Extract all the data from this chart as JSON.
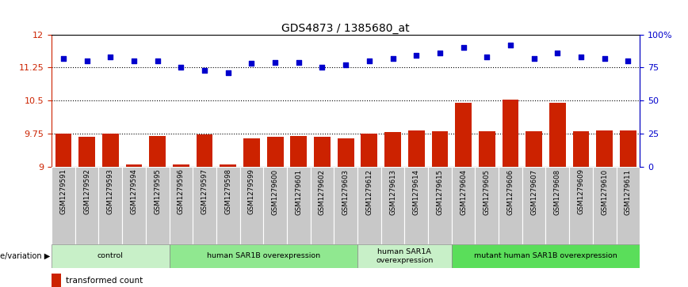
{
  "title": "GDS4873 / 1385680_at",
  "samples": [
    "GSM1279591",
    "GSM1279592",
    "GSM1279593",
    "GSM1279594",
    "GSM1279595",
    "GSM1279596",
    "GSM1279597",
    "GSM1279598",
    "GSM1279599",
    "GSM1279600",
    "GSM1279601",
    "GSM1279602",
    "GSM1279603",
    "GSM1279612",
    "GSM1279613",
    "GSM1279614",
    "GSM1279615",
    "GSM1279604",
    "GSM1279605",
    "GSM1279606",
    "GSM1279607",
    "GSM1279608",
    "GSM1279609",
    "GSM1279610",
    "GSM1279611"
  ],
  "transformed_count": [
    9.75,
    9.68,
    9.75,
    9.04,
    9.7,
    9.04,
    9.72,
    9.04,
    9.63,
    9.68,
    9.7,
    9.68,
    9.63,
    9.75,
    9.78,
    9.82,
    9.8,
    10.45,
    9.8,
    10.52,
    9.8,
    10.45,
    9.8,
    9.82,
    9.82
  ],
  "percentile_rank": [
    82,
    80,
    83,
    80,
    80,
    75,
    73,
    71,
    78,
    79,
    79,
    75,
    77,
    80,
    82,
    84,
    86,
    90,
    83,
    92,
    82,
    86,
    83,
    82,
    80
  ],
  "ylim_left": [
    9.0,
    12.0
  ],
  "ylim_right": [
    0,
    100
  ],
  "yticks_left": [
    9.0,
    9.75,
    10.5,
    11.25,
    12.0
  ],
  "yticks_right": [
    0,
    25,
    50,
    75,
    100
  ],
  "hlines": [
    9.75,
    10.5,
    11.25
  ],
  "groups": [
    {
      "label": "control",
      "start": 0,
      "end": 5,
      "color": "#c8f0c8"
    },
    {
      "label": "human SAR1B overexpression",
      "start": 5,
      "end": 13,
      "color": "#90e890"
    },
    {
      "label": "human SAR1A\noverexpression",
      "start": 13,
      "end": 17,
      "color": "#c8f0c8"
    },
    {
      "label": "mutant human SAR1B overexpression",
      "start": 17,
      "end": 25,
      "color": "#5ade5a"
    }
  ],
  "bar_color": "#cc2200",
  "dot_color": "#0000cc",
  "bar_width": 0.7,
  "title_fontsize": 10,
  "left_axis_color": "#cc2200",
  "right_axis_color": "#0000cc",
  "tick_gray": "#c8c8c8"
}
